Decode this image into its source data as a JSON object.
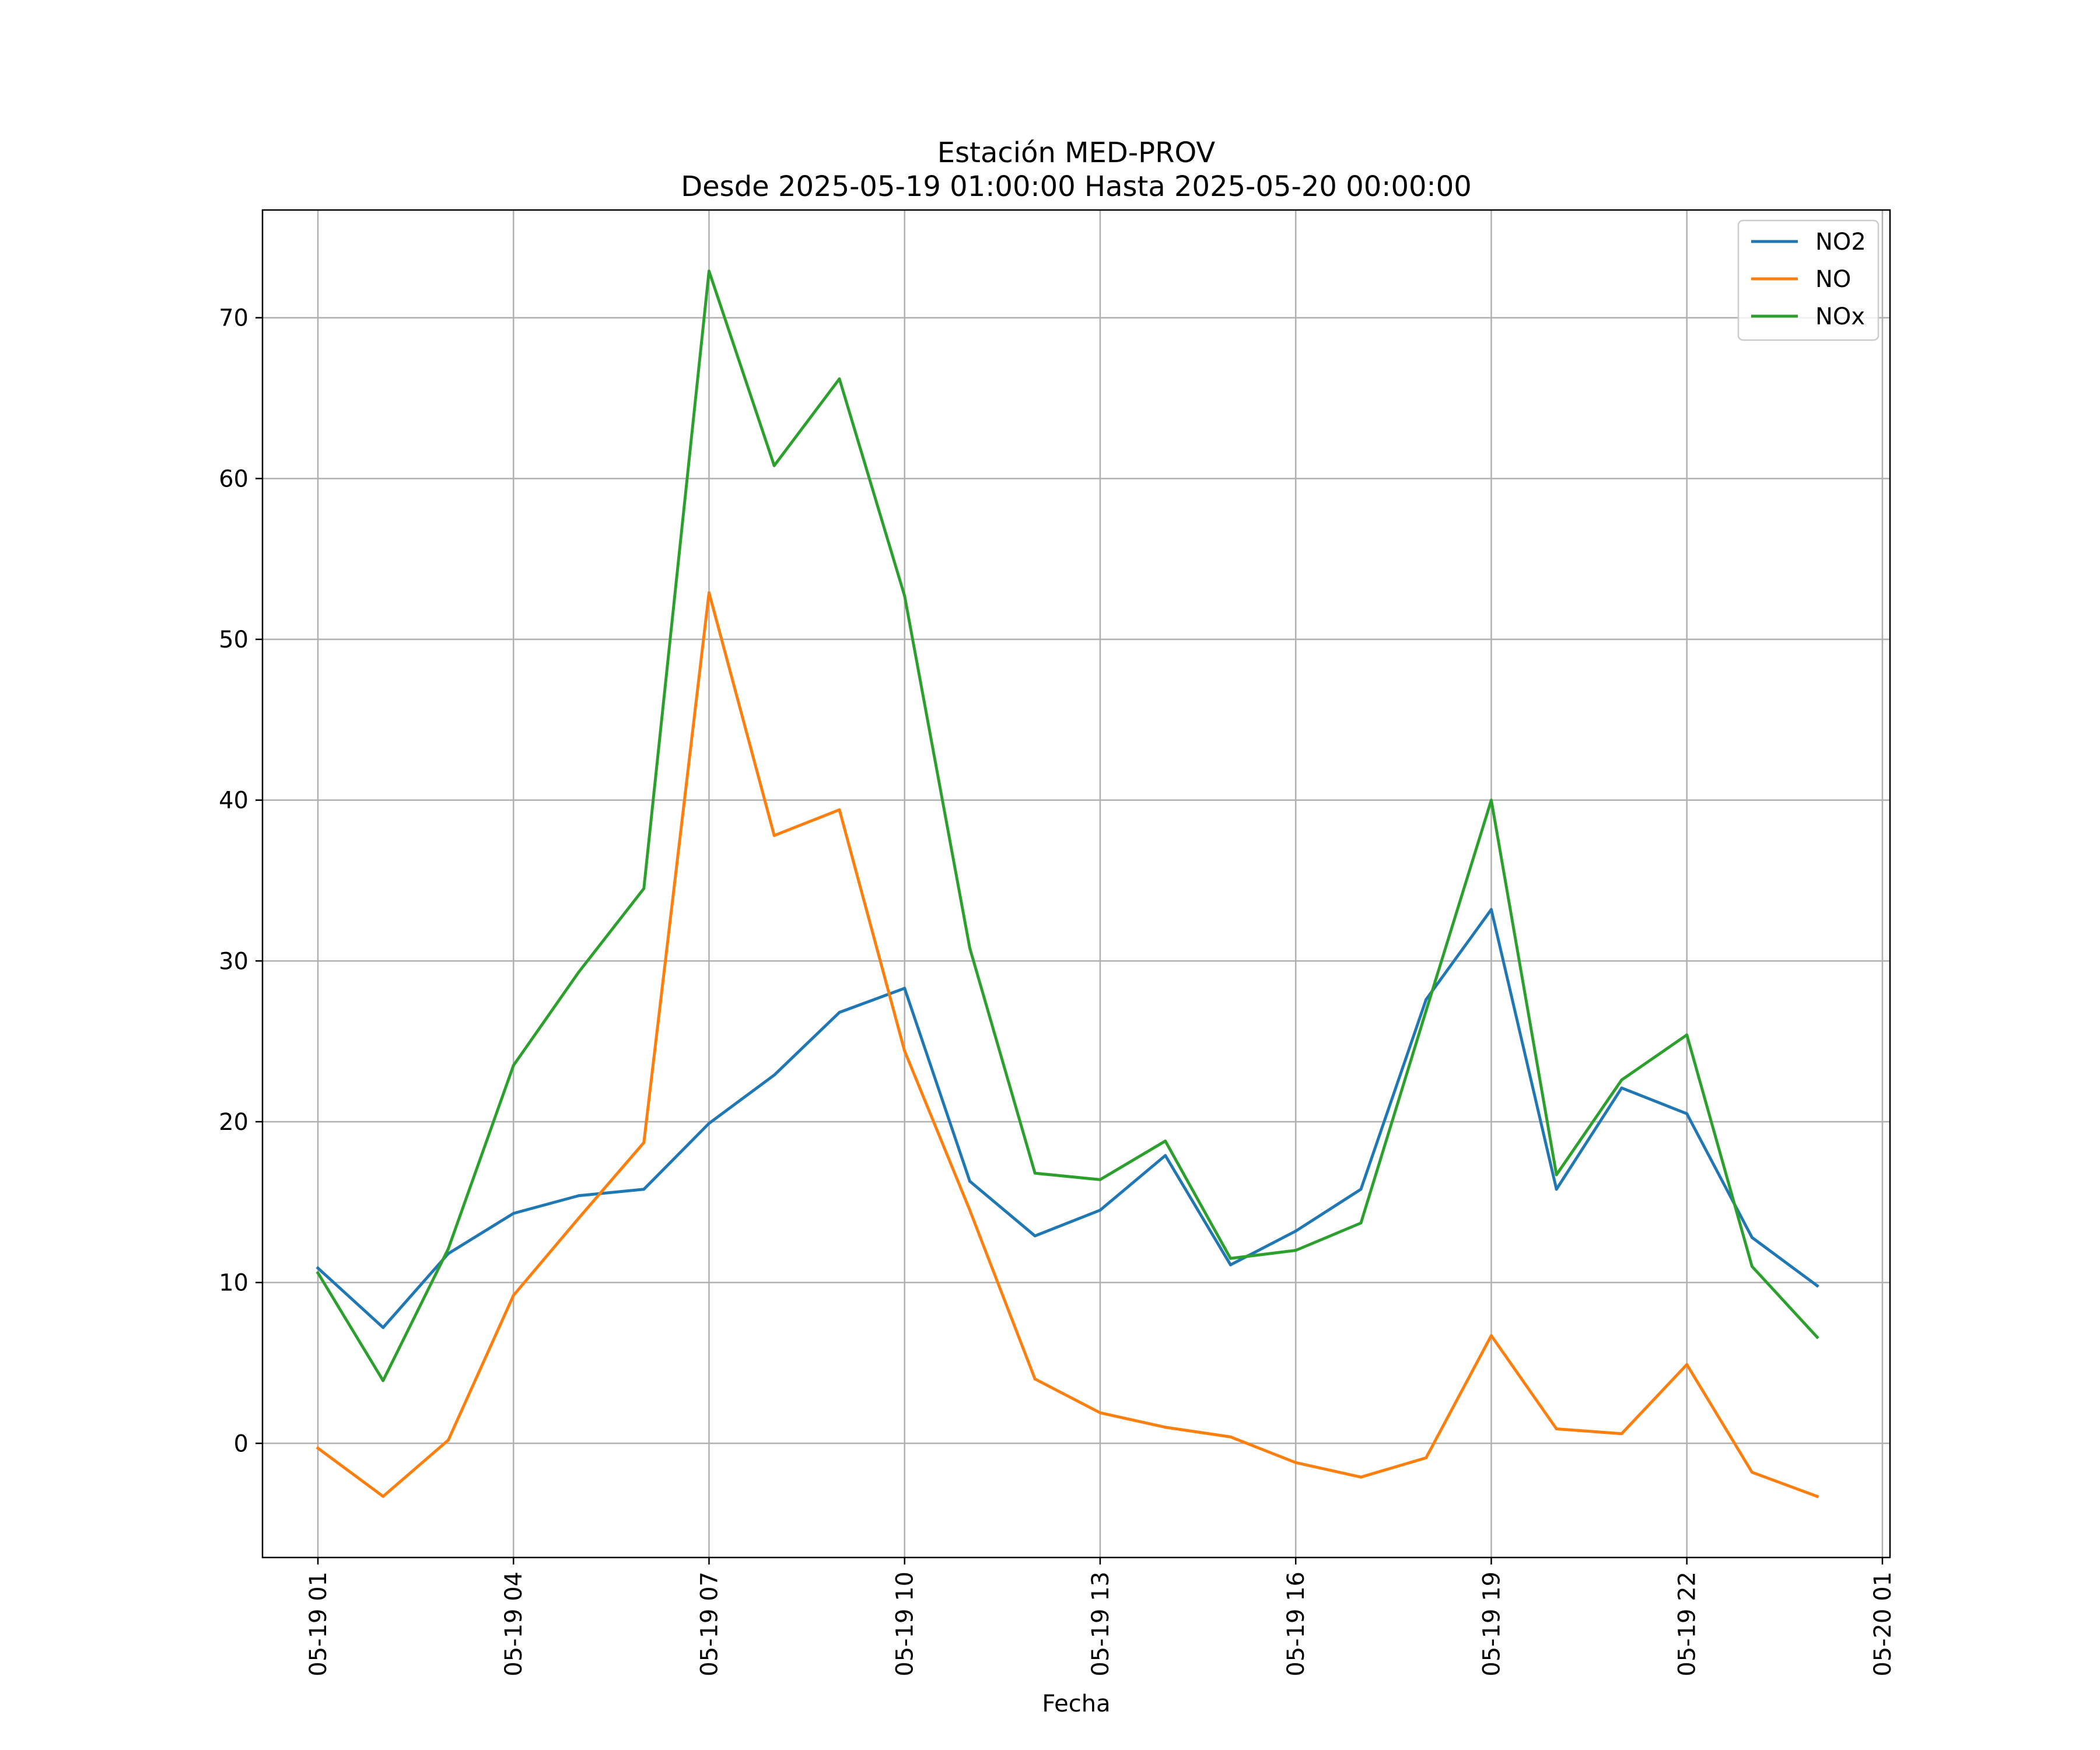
{
  "chart_data": {
    "type": "line",
    "title": "Estación MED-PROV",
    "subtitle": "Desde 2025-05-19 01:00:00 Hasta 2025-05-20 00:00:00",
    "xlabel": "Fecha",
    "ylabel": "",
    "x": [
      "05-19 01",
      "05-19 02",
      "05-19 03",
      "05-19 04",
      "05-19 05",
      "05-19 06",
      "05-19 07",
      "05-19 08",
      "05-19 09",
      "05-19 10",
      "05-19 11",
      "05-19 12",
      "05-19 13",
      "05-19 14",
      "05-19 15",
      "05-19 16",
      "05-19 17",
      "05-19 18",
      "05-19 19",
      "05-19 20",
      "05-19 21",
      "05-19 22",
      "05-19 23",
      "05-20 00"
    ],
    "x_ticks": [
      "05-19 01",
      "05-19 04",
      "05-19 07",
      "05-19 10",
      "05-19 13",
      "05-19 16",
      "05-19 19",
      "05-19 22",
      "05-20 01"
    ],
    "y_ticks": [
      0,
      10,
      20,
      30,
      40,
      50,
      60,
      70
    ],
    "ylim": [
      -7.1,
      76.7
    ],
    "xlim": [
      "05-19 00:09",
      "05-20 01:07"
    ],
    "grid": true,
    "legend_position": "top-right",
    "series": [
      {
        "name": "NO2",
        "color": "#1f77b4",
        "values": [
          10.9,
          7.2,
          11.8,
          14.3,
          15.4,
          15.8,
          19.9,
          22.9,
          26.8,
          28.3,
          16.3,
          12.9,
          14.5,
          17.9,
          11.1,
          13.2,
          15.8,
          27.6,
          33.2,
          15.8,
          22.1,
          20.5,
          12.8,
          9.8
        ]
      },
      {
        "name": "NO",
        "color": "#ff7f0e",
        "values": [
          -0.3,
          -3.3,
          0.2,
          9.2,
          14.0,
          18.7,
          52.9,
          37.8,
          39.4,
          24.4,
          14.5,
          4.0,
          1.9,
          1.0,
          0.4,
          -1.2,
          -2.1,
          -0.9,
          6.7,
          0.9,
          0.6,
          4.9,
          -1.8,
          -3.3
        ]
      },
      {
        "name": "NOx",
        "color": "#2ca02c",
        "values": [
          10.6,
          3.9,
          12.1,
          23.5,
          29.3,
          34.5,
          72.9,
          60.8,
          66.2,
          52.7,
          30.8,
          16.8,
          16.4,
          18.8,
          11.5,
          12.0,
          13.7,
          26.9,
          40.0,
          16.7,
          22.6,
          25.4,
          11.0,
          6.6
        ]
      }
    ]
  }
}
